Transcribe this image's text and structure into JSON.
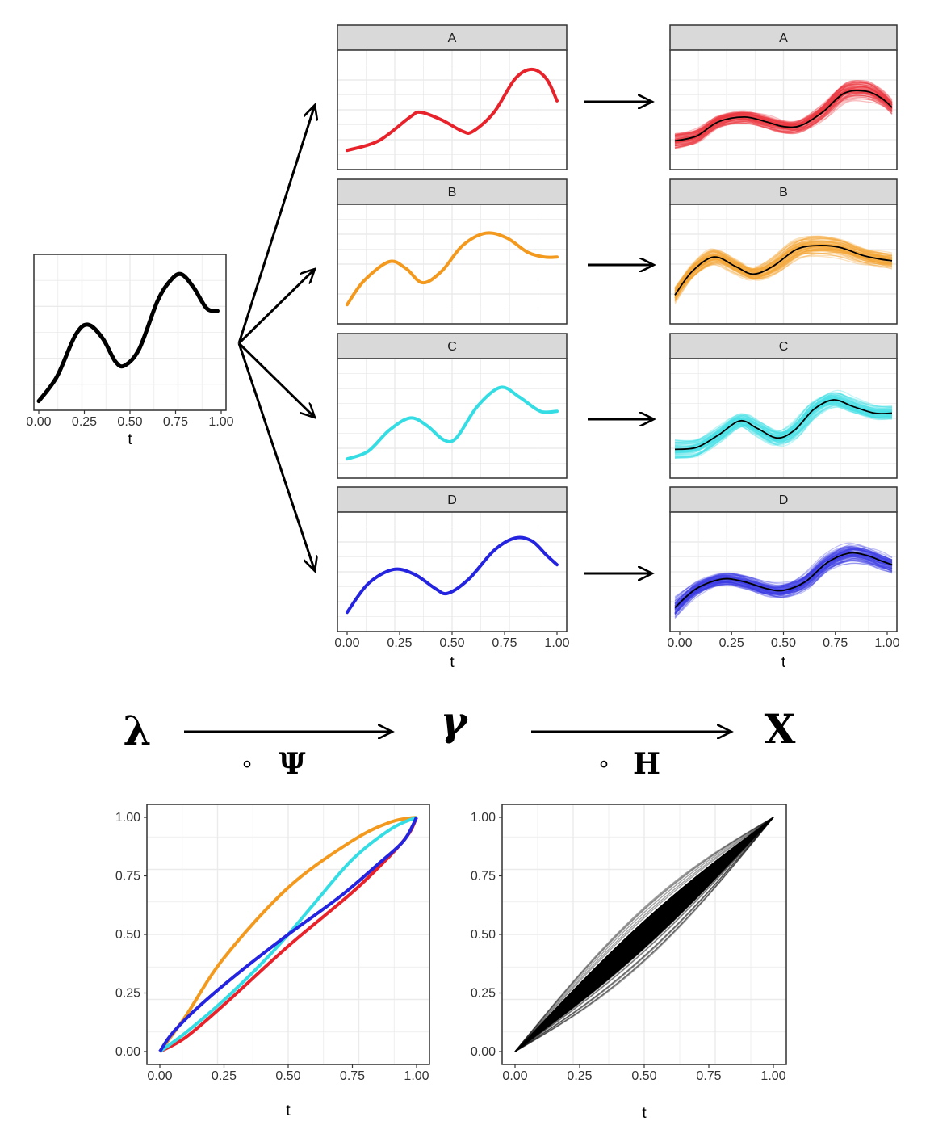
{
  "colors": {
    "A": "#e8222a",
    "B": "#f39a1e",
    "C": "#33dde3",
    "D": "#2424e0",
    "base": "#000000",
    "strip_bg": "#d9d9d9",
    "grid": "#ebebeb",
    "warp_band": "#000000"
  },
  "flow_labels": {
    "source": "λ",
    "middle": "γ",
    "target": "X",
    "op1_circle": "∘",
    "op1_symbol": "Ψ",
    "op2_circle": "∘",
    "op2_symbol": "H"
  },
  "chart_data": [
    {
      "id": "base",
      "type": "line",
      "xlabel": "t",
      "xlim": [
        0,
        1
      ],
      "x_ticks": [
        "0.00",
        "0.25",
        "0.50",
        "0.75",
        "1.00"
      ],
      "series": [
        {
          "x": [
            0,
            0.1,
            0.2,
            0.27,
            0.35,
            0.42,
            0.47,
            0.55,
            0.65,
            0.72,
            0.78,
            0.85,
            0.92,
            0.98
          ],
          "y": [
            0.02,
            0.2,
            0.5,
            0.58,
            0.48,
            0.31,
            0.28,
            0.4,
            0.75,
            0.9,
            0.95,
            0.85,
            0.7,
            0.68
          ]
        }
      ]
    },
    {
      "id": "component-A",
      "type": "line",
      "facet": "A",
      "series": [
        {
          "x": [
            0,
            0.15,
            0.3,
            0.35,
            0.45,
            0.55,
            0.6,
            0.7,
            0.8,
            0.88,
            0.95,
            1.0
          ],
          "y": [
            0.1,
            0.2,
            0.45,
            0.5,
            0.42,
            0.3,
            0.3,
            0.5,
            0.85,
            0.95,
            0.85,
            0.62
          ]
        }
      ]
    },
    {
      "id": "component-B",
      "type": "line",
      "facet": "B",
      "series": [
        {
          "x": [
            0,
            0.08,
            0.2,
            0.28,
            0.36,
            0.45,
            0.55,
            0.66,
            0.76,
            0.86,
            0.94,
            1.0
          ],
          "y": [
            0.1,
            0.35,
            0.55,
            0.48,
            0.33,
            0.45,
            0.72,
            0.85,
            0.8,
            0.65,
            0.6,
            0.6
          ]
        }
      ]
    },
    {
      "id": "component-C",
      "type": "line",
      "facet": "C",
      "series": [
        {
          "x": [
            0,
            0.1,
            0.2,
            0.3,
            0.38,
            0.46,
            0.52,
            0.62,
            0.73,
            0.82,
            0.92,
            1.0
          ],
          "y": [
            0.1,
            0.18,
            0.4,
            0.53,
            0.45,
            0.3,
            0.32,
            0.65,
            0.85,
            0.75,
            0.6,
            0.6
          ]
        }
      ]
    },
    {
      "id": "component-D",
      "type": "line",
      "facet": "D",
      "xlabel": "t",
      "x_ticks": [
        "0.00",
        "0.25",
        "0.50",
        "0.75",
        "1.00"
      ],
      "series": [
        {
          "x": [
            0,
            0.1,
            0.22,
            0.32,
            0.42,
            0.48,
            0.58,
            0.7,
            0.8,
            0.88,
            0.95,
            1.0
          ],
          "y": [
            0.1,
            0.4,
            0.55,
            0.5,
            0.35,
            0.3,
            0.45,
            0.75,
            0.88,
            0.85,
            0.7,
            0.6
          ]
        }
      ]
    },
    {
      "id": "samples",
      "type": "line",
      "facets": [
        "A",
        "B",
        "C",
        "D"
      ],
      "xlabel": "t",
      "x_ticks": [
        "0.00",
        "0.25",
        "0.50",
        "0.75",
        "1.00"
      ],
      "n_samples": 80,
      "mean_series": {
        "A": {
          "x": [
            0,
            0.1,
            0.2,
            0.32,
            0.42,
            0.5,
            0.58,
            0.68,
            0.78,
            0.88,
            0.95,
            1.0
          ],
          "y": [
            0.2,
            0.25,
            0.4,
            0.45,
            0.4,
            0.35,
            0.36,
            0.5,
            0.7,
            0.72,
            0.65,
            0.55
          ]
        },
        "B": {
          "x": [
            0,
            0.08,
            0.18,
            0.28,
            0.36,
            0.45,
            0.56,
            0.66,
            0.76,
            0.86,
            0.94,
            1.0
          ],
          "y": [
            0.2,
            0.45,
            0.6,
            0.5,
            0.42,
            0.5,
            0.68,
            0.72,
            0.7,
            0.62,
            0.58,
            0.56
          ]
        },
        "C": {
          "x": [
            0,
            0.1,
            0.2,
            0.3,
            0.38,
            0.47,
            0.55,
            0.64,
            0.73,
            0.82,
            0.92,
            1.0
          ],
          "y": [
            0.2,
            0.22,
            0.35,
            0.5,
            0.42,
            0.32,
            0.4,
            0.62,
            0.72,
            0.65,
            0.58,
            0.58
          ]
        },
        "D": {
          "x": [
            0,
            0.1,
            0.22,
            0.32,
            0.42,
            0.5,
            0.6,
            0.7,
            0.8,
            0.88,
            0.95,
            1.0
          ],
          "y": [
            0.15,
            0.35,
            0.45,
            0.42,
            0.35,
            0.33,
            0.42,
            0.62,
            0.72,
            0.7,
            0.64,
            0.6
          ]
        }
      }
    },
    {
      "id": "warping-functions",
      "type": "line",
      "xlabel": "t",
      "xlim": [
        0,
        1
      ],
      "ylim": [
        0,
        1
      ],
      "x_ticks": [
        "0.00",
        "0.25",
        "0.50",
        "0.75",
        "1.00"
      ],
      "y_ticks": [
        "0.00",
        "0.25",
        "0.50",
        "0.75",
        "1.00"
      ],
      "series": [
        {
          "facet": "A",
          "x": [
            0,
            0.1,
            0.25,
            0.5,
            0.75,
            0.9,
            0.97,
            1.0
          ],
          "y": [
            0,
            0.06,
            0.2,
            0.45,
            0.68,
            0.84,
            0.93,
            1.0
          ]
        },
        {
          "facet": "B",
          "x": [
            0,
            0.1,
            0.25,
            0.5,
            0.75,
            0.9,
            1.0
          ],
          "y": [
            0,
            0.15,
            0.4,
            0.7,
            0.9,
            0.98,
            1.0
          ]
        },
        {
          "facet": "C",
          "x": [
            0,
            0.1,
            0.25,
            0.4,
            0.5,
            0.6,
            0.75,
            0.9,
            1.0
          ],
          "y": [
            0,
            0.08,
            0.22,
            0.38,
            0.5,
            0.63,
            0.82,
            0.95,
            1.0
          ]
        },
        {
          "facet": "D",
          "x": [
            0,
            0.05,
            0.15,
            0.3,
            0.5,
            0.7,
            0.85,
            0.95,
            1.0
          ],
          "y": [
            0,
            0.08,
            0.19,
            0.33,
            0.5,
            0.66,
            0.8,
            0.9,
            1.0
          ]
        }
      ]
    },
    {
      "id": "sample-warps",
      "type": "area",
      "xlabel": "t",
      "xlim": [
        0,
        1
      ],
      "ylim": [
        0,
        1
      ],
      "x_ticks": [
        "0.00",
        "0.25",
        "0.50",
        "0.75",
        "1.00"
      ],
      "y_ticks": [
        "0.00",
        "0.25",
        "0.50",
        "0.75",
        "1.00"
      ],
      "band_half_width": 0.06,
      "n_samples": 40
    }
  ]
}
